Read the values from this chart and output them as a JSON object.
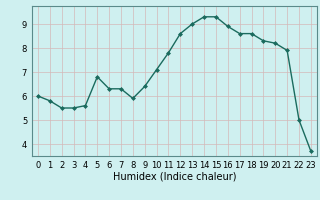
{
  "x": [
    0,
    1,
    2,
    3,
    4,
    5,
    6,
    7,
    8,
    9,
    10,
    11,
    12,
    13,
    14,
    15,
    16,
    17,
    18,
    19,
    20,
    21,
    22,
    23
  ],
  "y": [
    6.0,
    5.8,
    5.5,
    5.5,
    5.6,
    6.8,
    6.3,
    6.3,
    5.9,
    6.4,
    7.1,
    7.8,
    8.6,
    9.0,
    9.3,
    9.3,
    8.9,
    8.6,
    8.6,
    8.3,
    8.2,
    7.9,
    5.0,
    3.7
  ],
  "xlabel": "Humidex (Indice chaleur)",
  "bg_color": "#cff0f0",
  "line_color": "#1a6b5e",
  "grid_color_major": "#c0dede",
  "grid_color_minor": "#e0f4f4",
  "ylim": [
    3.5,
    9.75
  ],
  "xlim": [
    -0.5,
    23.5
  ],
  "yticks": [
    4,
    5,
    6,
    7,
    8,
    9
  ],
  "xticks": [
    0,
    1,
    2,
    3,
    4,
    5,
    6,
    7,
    8,
    9,
    10,
    11,
    12,
    13,
    14,
    15,
    16,
    17,
    18,
    19,
    20,
    21,
    22,
    23
  ],
  "xtick_labels": [
    "0",
    "1",
    "2",
    "3",
    "4",
    "5",
    "6",
    "7",
    "8",
    "9",
    "10",
    "11",
    "12",
    "13",
    "14",
    "15",
    "16",
    "17",
    "18",
    "19",
    "20",
    "21",
    "22",
    "23"
  ],
  "marker": "D",
  "markersize": 2.0,
  "linewidth": 1.0,
  "tick_fontsize": 6.0,
  "xlabel_fontsize": 7.0
}
